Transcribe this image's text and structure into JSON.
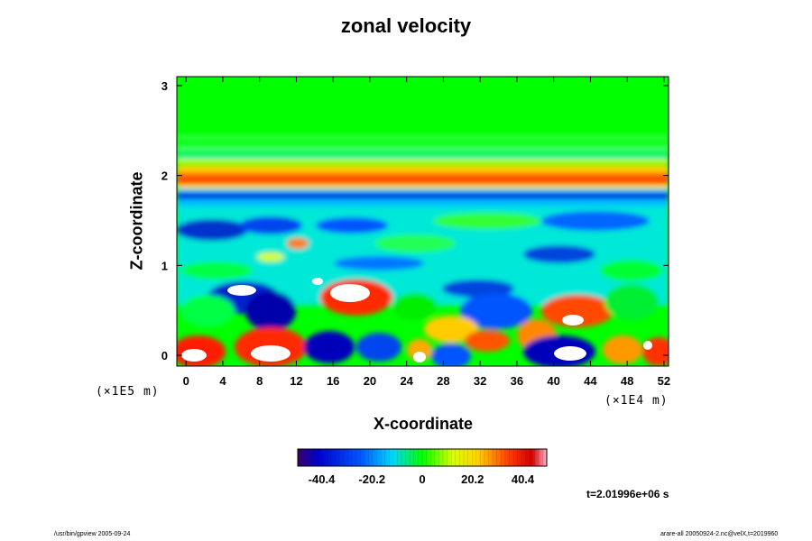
{
  "chart_data": {
    "type": "heatmap",
    "title": "zonal velocity",
    "xlabel": "X-coordinate",
    "ylabel": "Z-coordinate",
    "x_unit": "(×1E4 m)",
    "y_unit": "(×1E5 m)",
    "xlim": [
      -1,
      52.5
    ],
    "ylim": [
      -0.12,
      3.1
    ],
    "x_ticks": [
      "0",
      "4",
      "8",
      "12",
      "16",
      "20",
      "24",
      "28",
      "32",
      "36",
      "40",
      "44",
      "48",
      "52"
    ],
    "x_tick_values": [
      0,
      4,
      8,
      12,
      16,
      20,
      24,
      28,
      32,
      36,
      40,
      44,
      48,
      52
    ],
    "y_ticks": [
      "0",
      "1",
      "2",
      "3"
    ],
    "y_tick_values": [
      0,
      1,
      2,
      3
    ],
    "colorbar": {
      "range": [
        -50,
        50
      ],
      "ticks": [
        "-40.4",
        "-20.2",
        "0",
        "20.2",
        "40.4"
      ],
      "tick_values": [
        -40.4,
        -20.2,
        0,
        20.2,
        40.4
      ]
    },
    "time_label": "t=2.01996e+06 s"
  },
  "footer": {
    "left": "/usr/bin/gpview 2005-09-24",
    "right": "arare-all 20050924-2.nc@velX,t=2019960"
  }
}
